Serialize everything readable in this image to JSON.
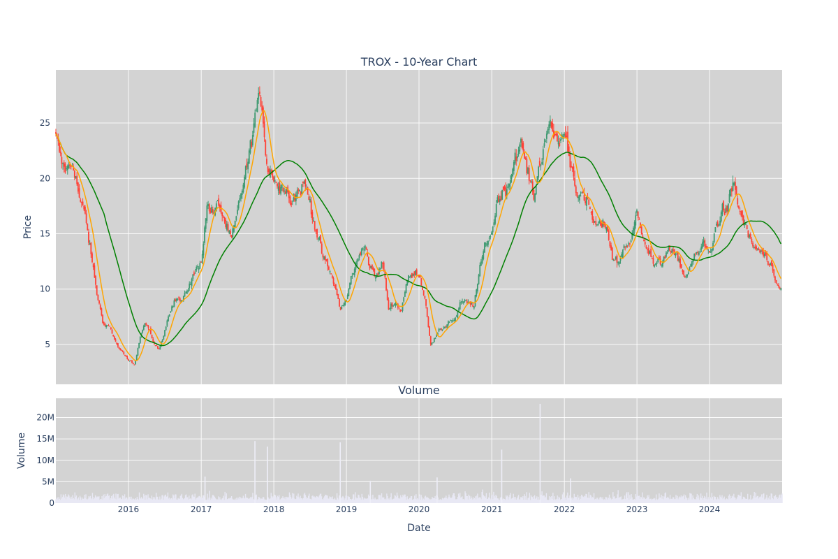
{
  "chart_data": [
    {
      "type": "candlestick",
      "title": "TROX - 10-Year Chart",
      "ylabel": "Price",
      "ylim": [
        1.4,
        29.8
      ],
      "xlim": [
        "2015-01-01",
        "2024-12-31"
      ],
      "yticks": [
        5,
        10,
        15,
        20,
        25
      ],
      "grid": true,
      "colors": {
        "up": "#3d9970",
        "down": "#ff4136",
        "ma_short": "#ffa500",
        "ma_long": "#008000",
        "background": "#d3d3d3"
      },
      "close_series": [
        [
          "2015-01-01",
          23.6
        ],
        [
          "2015-02-01",
          21.0
        ],
        [
          "2015-03-01",
          20.8
        ],
        [
          "2015-04-01",
          21.5
        ],
        [
          "2015-05-01",
          18.0
        ],
        [
          "2015-06-01",
          16.2
        ],
        [
          "2015-07-01",
          12.5
        ],
        [
          "2015-08-01",
          9.0
        ],
        [
          "2015-09-01",
          6.8
        ],
        [
          "2015-10-01",
          6.6
        ],
        [
          "2015-11-01",
          5.0
        ],
        [
          "2015-12-01",
          4.2
        ],
        [
          "2016-01-01",
          3.5
        ],
        [
          "2016-02-01",
          3.2
        ],
        [
          "2016-03-01",
          5.8
        ],
        [
          "2016-04-01",
          7.0
        ],
        [
          "2016-05-01",
          5.2
        ],
        [
          "2016-06-01",
          4.5
        ],
        [
          "2016-07-01",
          6.4
        ],
        [
          "2016-08-01",
          8.5
        ],
        [
          "2016-09-01",
          9.2
        ],
        [
          "2016-10-01",
          8.8
        ],
        [
          "2016-11-01",
          10.5
        ],
        [
          "2016-12-01",
          11.4
        ],
        [
          "2017-01-01",
          12.8
        ],
        [
          "2017-02-01",
          17.8
        ],
        [
          "2017-03-01",
          16.8
        ],
        [
          "2017-04-01",
          17.5
        ],
        [
          "2017-05-01",
          16.0
        ],
        [
          "2017-06-01",
          14.2
        ],
        [
          "2017-07-01",
          16.5
        ],
        [
          "2017-08-01",
          19.8
        ],
        [
          "2017-09-01",
          22.0
        ],
        [
          "2017-10-01",
          26.0
        ],
        [
          "2017-11-01",
          26.8
        ],
        [
          "2017-12-01",
          21.0
        ],
        [
          "2018-01-01",
          20.5
        ],
        [
          "2018-02-01",
          19.0
        ],
        [
          "2018-03-01",
          19.8
        ],
        [
          "2018-04-01",
          18.0
        ],
        [
          "2018-05-01",
          18.8
        ],
        [
          "2018-06-01",
          19.5
        ],
        [
          "2018-07-01",
          18.0
        ],
        [
          "2018-08-01",
          15.5
        ],
        [
          "2018-09-01",
          13.0
        ],
        [
          "2018-10-01",
          11.8
        ],
        [
          "2018-11-01",
          10.5
        ],
        [
          "2018-12-01",
          8.2
        ],
        [
          "2019-01-01",
          9.0
        ],
        [
          "2019-02-01",
          11.5
        ],
        [
          "2019-03-01",
          12.6
        ],
        [
          "2019-04-01",
          14.5
        ],
        [
          "2019-05-01",
          11.8
        ],
        [
          "2019-06-01",
          11.0
        ],
        [
          "2019-07-01",
          12.5
        ],
        [
          "2019-08-01",
          8.2
        ],
        [
          "2019-09-01",
          9.0
        ],
        [
          "2019-10-01",
          8.0
        ],
        [
          "2019-11-01",
          10.8
        ],
        [
          "2019-12-01",
          11.2
        ],
        [
          "2020-01-01",
          11.6
        ],
        [
          "2020-02-01",
          9.2
        ],
        [
          "2020-03-01",
          5.0
        ],
        [
          "2020-04-01",
          5.8
        ],
        [
          "2020-05-01",
          6.5
        ],
        [
          "2020-06-01",
          7.2
        ],
        [
          "2020-07-01",
          7.3
        ],
        [
          "2020-08-01",
          8.8
        ],
        [
          "2020-09-01",
          8.6
        ],
        [
          "2020-10-01",
          8.5
        ],
        [
          "2020-11-01",
          11.5
        ],
        [
          "2020-12-01",
          14.2
        ],
        [
          "2021-01-01",
          15.2
        ],
        [
          "2021-02-01",
          18.4
        ],
        [
          "2021-03-01",
          18.8
        ],
        [
          "2021-04-01",
          20.0
        ],
        [
          "2021-05-01",
          22.5
        ],
        [
          "2021-06-01",
          22.8
        ],
        [
          "2021-07-01",
          20.2
        ],
        [
          "2021-08-01",
          18.5
        ],
        [
          "2021-09-01",
          21.5
        ],
        [
          "2021-10-01",
          24.5
        ],
        [
          "2021-11-01",
          24.0
        ],
        [
          "2021-12-01",
          23.2
        ],
        [
          "2022-01-01",
          24.2
        ],
        [
          "2022-02-01",
          21.5
        ],
        [
          "2022-03-01",
          19.5
        ],
        [
          "2022-04-01",
          18.0
        ],
        [
          "2022-05-01",
          17.5
        ],
        [
          "2022-06-01",
          15.8
        ],
        [
          "2022-07-01",
          15.5
        ],
        [
          "2022-08-01",
          15.8
        ],
        [
          "2022-09-01",
          12.8
        ],
        [
          "2022-10-01",
          12.4
        ],
        [
          "2022-11-01",
          14.2
        ],
        [
          "2022-12-01",
          14.0
        ],
        [
          "2023-01-01",
          16.8
        ],
        [
          "2023-02-01",
          15.2
        ],
        [
          "2023-03-01",
          13.5
        ],
        [
          "2023-04-01",
          12.0
        ],
        [
          "2023-05-01",
          12.2
        ],
        [
          "2023-06-01",
          13.8
        ],
        [
          "2023-07-01",
          13.0
        ],
        [
          "2023-08-01",
          12.5
        ],
        [
          "2023-09-01",
          11.0
        ],
        [
          "2023-10-01",
          12.5
        ],
        [
          "2023-11-01",
          13.0
        ],
        [
          "2023-12-01",
          14.0
        ],
        [
          "2024-01-01",
          13.2
        ],
        [
          "2024-02-01",
          15.5
        ],
        [
          "2024-03-01",
          17.2
        ],
        [
          "2024-04-01",
          17.0
        ],
        [
          "2024-05-01",
          19.5
        ],
        [
          "2024-06-01",
          17.0
        ],
        [
          "2024-07-01",
          15.5
        ],
        [
          "2024-08-01",
          13.8
        ],
        [
          "2024-09-01",
          13.5
        ],
        [
          "2024-10-01",
          13.0
        ],
        [
          "2024-11-01",
          11.8
        ],
        [
          "2024-12-01",
          10.2
        ]
      ]
    },
    {
      "type": "bar",
      "title": "Volume",
      "ylabel": "Volume",
      "xlabel": "Date",
      "ylim": [
        0,
        24500000
      ],
      "yticks": [
        0,
        5000000,
        10000000,
        15000000,
        20000000
      ],
      "ytick_labels": [
        "0",
        "5M",
        "10M",
        "15M",
        "20M"
      ],
      "xticks": [
        "2016-01-01",
        "2017-01-01",
        "2018-01-01",
        "2019-01-01",
        "2020-01-01",
        "2021-01-01",
        "2022-01-01",
        "2023-01-01",
        "2024-01-01"
      ],
      "xtick_labels": [
        "2016",
        "2017",
        "2018",
        "2019",
        "2020",
        "2021",
        "2022",
        "2023",
        "2024"
      ],
      "colors": {
        "bar": "#e8e8f4"
      },
      "spikes": [
        [
          "2017-09-28",
          14500000
        ],
        [
          "2017-11-30",
          13200000
        ],
        [
          "2018-12-01",
          14200000
        ],
        [
          "2021-02-20",
          12500000
        ],
        [
          "2021-09-01",
          23200000
        ],
        [
          "2017-01-20",
          6200000
        ],
        [
          "2020-04-01",
          6000000
        ],
        [
          "2022-02-01",
          5800000
        ],
        [
          "2019-05-01",
          5200000
        ]
      ],
      "typical_volume": 1800000
    }
  ]
}
